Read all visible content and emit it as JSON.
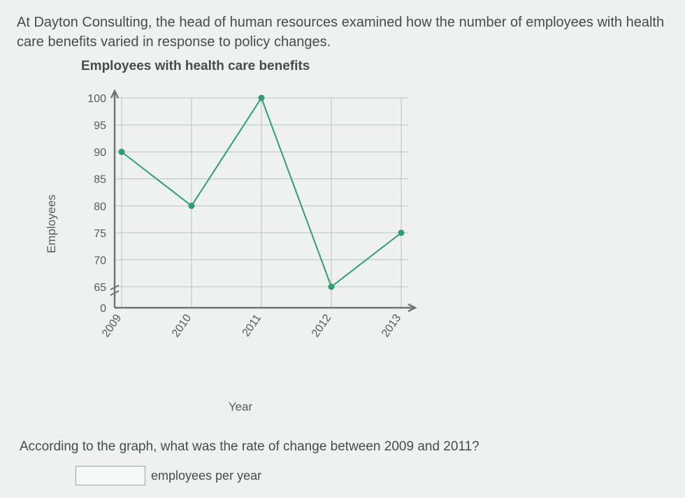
{
  "intro": "At Dayton Consulting, the head of human resources examined how the number of employees with health care benefits varied in response to policy changes.",
  "chart": {
    "type": "line",
    "title": "Employees with health care benefits",
    "ylabel": "Employees",
    "xlabel": "Year",
    "x_categories": [
      "2009",
      "2010",
      "2011",
      "2012",
      "2013"
    ],
    "y_values": [
      90,
      80,
      100,
      65,
      75
    ],
    "ylim": [
      0,
      100
    ],
    "y_ticks": [
      0,
      65,
      70,
      75,
      80,
      85,
      90,
      95,
      100
    ],
    "y_axis_break": true,
    "line_color": "#2f9d73",
    "marker_color": "#2f9d73",
    "marker_size": 4.5,
    "line_width": 2,
    "grid_color": "#b8c2bf",
    "axis_color": "#6e7572",
    "background_color": "#eef1f0",
    "tick_fontsize": 16,
    "label_fontsize": 17,
    "title_fontsize": 19
  },
  "question": "According to the graph, what was the rate of change between 2009 and 2011?",
  "answer": {
    "value": "",
    "unit": "employees per year"
  }
}
